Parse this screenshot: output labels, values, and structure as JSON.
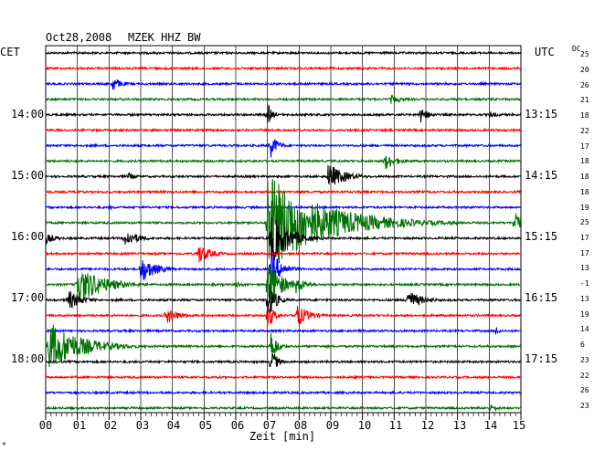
{
  "header": {
    "date": "Oct28,2008",
    "station": "MZEK HHZ BW"
  },
  "left_axis": {
    "title": "CET",
    "hours": [
      "14:00",
      "15:00",
      "16:00",
      "17:00",
      "18:00"
    ]
  },
  "right_axis": {
    "title": "UTC",
    "hours": [
      "13:15",
      "14:15",
      "15:15",
      "16:15",
      "17:15"
    ]
  },
  "dc": {
    "title": "DC",
    "values": [
      "25",
      "20",
      "26",
      "21",
      "18",
      "22",
      "17",
      "18",
      "18",
      "18",
      "19",
      "25",
      "17",
      "17",
      "13",
      "-1",
      "13",
      "19",
      "14",
      "6",
      "23",
      "22",
      "26",
      "23"
    ]
  },
  "x_axis": {
    "label": "Zeit [min]",
    "ticks": [
      "00",
      "01",
      "02",
      "03",
      "04",
      "05",
      "06",
      "07",
      "08",
      "09",
      "10",
      "11",
      "12",
      "13",
      "14",
      "15"
    ]
  },
  "corner_mark": "*",
  "traces": {
    "colors": [
      "#000000",
      "#ff0000",
      "#0000ff",
      "#007000"
    ],
    "count": 24,
    "minutes": 15,
    "events": [
      {
        "trace": 2,
        "minute": 2.1,
        "amp": 9,
        "dur": 0.6
      },
      {
        "trace": 3,
        "minute": 10.9,
        "amp": 5,
        "dur": 0.8
      },
      {
        "trace": 4,
        "minute": 7.0,
        "amp": 14,
        "dur": 0.3
      },
      {
        "trace": 4,
        "minute": 11.8,
        "amp": 10,
        "dur": 0.6
      },
      {
        "trace": 4,
        "minute": 14.0,
        "amp": 4,
        "dur": 0.7
      },
      {
        "trace": 6,
        "minute": 7.1,
        "amp": 14,
        "dur": 0.5
      },
      {
        "trace": 7,
        "minute": 10.7,
        "amp": 10,
        "dur": 0.8
      },
      {
        "trace": 8,
        "minute": 2.6,
        "amp": 5,
        "dur": 0.5
      },
      {
        "trace": 8,
        "minute": 8.9,
        "amp": 15,
        "dur": 1.2
      },
      {
        "trace": 10,
        "minute": 2.0,
        "amp": 3,
        "dur": 0.4
      },
      {
        "trace": 11,
        "minute": 7.0,
        "amp": 55,
        "dur": 3.8
      },
      {
        "trace": 11,
        "minute": 14.8,
        "amp": 20,
        "dur": 0.4
      },
      {
        "trace": 12,
        "minute": 0.0,
        "amp": 6,
        "dur": 0.8
      },
      {
        "trace": 12,
        "minute": 2.5,
        "amp": 10,
        "dur": 1.0
      },
      {
        "trace": 12,
        "minute": 7.1,
        "amp": 30,
        "dur": 1.2
      },
      {
        "trace": 13,
        "minute": 4.8,
        "amp": 12,
        "dur": 0.9
      },
      {
        "trace": 14,
        "minute": 3.0,
        "amp": 16,
        "dur": 1.0
      },
      {
        "trace": 14,
        "minute": 7.1,
        "amp": 20,
        "dur": 0.8
      },
      {
        "trace": 15,
        "minute": 1.0,
        "amp": 22,
        "dur": 1.8
      },
      {
        "trace": 15,
        "minute": 6.0,
        "amp": 5,
        "dur": 0.4
      },
      {
        "trace": 15,
        "minute": 7.0,
        "amp": 30,
        "dur": 0.9
      },
      {
        "trace": 15,
        "minute": 7.9,
        "amp": 10,
        "dur": 0.7
      },
      {
        "trace": 16,
        "minute": 0.7,
        "amp": 12,
        "dur": 0.9
      },
      {
        "trace": 16,
        "minute": 7.0,
        "amp": 25,
        "dur": 0.5
      },
      {
        "trace": 16,
        "minute": 11.4,
        "amp": 12,
        "dur": 1.0
      },
      {
        "trace": 17,
        "minute": 3.8,
        "amp": 10,
        "dur": 0.9
      },
      {
        "trace": 17,
        "minute": 7.0,
        "amp": 18,
        "dur": 0.4
      },
      {
        "trace": 17,
        "minute": 7.9,
        "amp": 13,
        "dur": 0.9
      },
      {
        "trace": 18,
        "minute": 14.2,
        "amp": 5,
        "dur": 0.4
      },
      {
        "trace": 19,
        "minute": 0.1,
        "amp": 28,
        "dur": 2.2
      },
      {
        "trace": 19,
        "minute": 7.1,
        "amp": 22,
        "dur": 0.4
      },
      {
        "trace": 20,
        "minute": 7.1,
        "amp": 18,
        "dur": 0.4
      },
      {
        "trace": 21,
        "minute": 9.7,
        "amp": 3,
        "dur": 0.3
      },
      {
        "trace": 23,
        "minute": 14.0,
        "amp": 5,
        "dur": 0.7
      }
    ]
  }
}
